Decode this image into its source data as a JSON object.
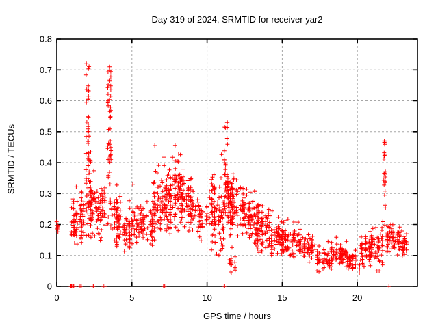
{
  "chart_data": {
    "type": "scatter",
    "title": "Day 319 of 2024, SRMTID for receiver yar2",
    "xlabel": "GPS time / hours",
    "ylabel": "SRMTID / TECUs",
    "xlim": [
      0,
      24
    ],
    "ylim": [
      0,
      0.8
    ],
    "x_tick_values": [
      0,
      5,
      10,
      15,
      20
    ],
    "x_tick_labels": [
      "0",
      "5",
      "10",
      "15",
      "20"
    ],
    "y_tick_values": [
      0,
      0.1,
      0.2,
      0.3,
      0.4,
      0.5,
      0.6,
      0.7,
      0.8
    ],
    "y_tick_labels": [
      "0",
      "0.1",
      "0.2",
      "0.3",
      "0.4",
      "0.5",
      "0.6",
      "0.7",
      "0.8"
    ],
    "grid": true,
    "legend": false,
    "marker": {
      "shape": "plus",
      "color": "#ff0000",
      "size": 7
    },
    "seed": 319,
    "zero_markers": [
      0.93,
      0.96,
      1.0,
      1.12,
      1.2,
      1.55,
      1.63,
      2.35,
      2.43,
      3.1,
      3.2,
      7.1,
      7.18,
      11.13,
      11.17,
      22.1
    ],
    "bands": [
      {
        "x0": 0.0,
        "x1": 0.12,
        "cols": 3,
        "pts": 2,
        "yc": 0.19,
        "ys": 0.012,
        "ymin": 0.17,
        "ymax": 0.21
      },
      {
        "x0": 0.9,
        "x1": 1.4,
        "cols": 14,
        "pts": 3,
        "yc": 0.2,
        "ys": 0.05,
        "ymin": 0.12,
        "ymax": 0.33
      },
      {
        "x0": 1.4,
        "x1": 1.88,
        "cols": 13,
        "pts": 3,
        "yc": 0.22,
        "ys": 0.055,
        "ymin": 0.13,
        "ymax": 0.37
      },
      {
        "x0": 1.9,
        "x1": 2.15,
        "cols": 7,
        "pts": 7,
        "yc": 0.33,
        "ys": 0.14,
        "ymin": 0.16,
        "ymax": 0.72,
        "spike": true
      },
      {
        "x0": 2.15,
        "x1": 2.7,
        "cols": 14,
        "pts": 4,
        "yc": 0.26,
        "ys": 0.07,
        "ymin": 0.14,
        "ymax": 0.46
      },
      {
        "x0": 2.7,
        "x1": 3.35,
        "cols": 15,
        "pts": 4,
        "yc": 0.24,
        "ys": 0.06,
        "ymin": 0.14,
        "ymax": 0.4
      },
      {
        "x0": 3.4,
        "x1": 3.65,
        "cols": 6,
        "pts": 7,
        "yc": 0.4,
        "ys": 0.14,
        "ymin": 0.18,
        "ymax": 0.71,
        "spike": true
      },
      {
        "x0": 3.65,
        "x1": 4.3,
        "cols": 16,
        "pts": 4,
        "yc": 0.21,
        "ys": 0.05,
        "ymin": 0.11,
        "ymax": 0.33
      },
      {
        "x0": 4.3,
        "x1": 5.0,
        "cols": 16,
        "pts": 3,
        "yc": 0.18,
        "ys": 0.04,
        "ymin": 0.1,
        "ymax": 0.28
      },
      {
        "x0": 5.0,
        "x1": 5.6,
        "cols": 14,
        "pts": 3,
        "yc": 0.21,
        "ys": 0.045,
        "ymin": 0.13,
        "ymax": 0.33
      },
      {
        "x0": 5.6,
        "x1": 6.4,
        "cols": 18,
        "pts": 3,
        "yc": 0.19,
        "ys": 0.04,
        "ymin": 0.11,
        "ymax": 0.29
      },
      {
        "x0": 6.4,
        "x1": 7.1,
        "cols": 16,
        "pts": 4,
        "yc": 0.26,
        "ys": 0.07,
        "ymin": 0.15,
        "ymax": 0.47
      },
      {
        "x0": 7.1,
        "x1": 7.6,
        "cols": 13,
        "pts": 5,
        "yc": 0.28,
        "ys": 0.07,
        "ymin": 0.17,
        "ymax": 0.44
      },
      {
        "x0": 7.6,
        "x1": 8.4,
        "cols": 18,
        "pts": 5,
        "yc": 0.3,
        "ys": 0.07,
        "ymin": 0.18,
        "ymax": 0.47
      },
      {
        "x0": 8.4,
        "x1": 9.2,
        "cols": 16,
        "pts": 4,
        "yc": 0.26,
        "ys": 0.06,
        "ymin": 0.15,
        "ymax": 0.385
      },
      {
        "x0": 9.2,
        "x1": 10.0,
        "cols": 15,
        "pts": 3,
        "yc": 0.21,
        "ys": 0.05,
        "ymin": 0.11,
        "ymax": 0.37
      },
      {
        "x0": 10.0,
        "x1": 10.6,
        "cols": 13,
        "pts": 4,
        "yc": 0.24,
        "ys": 0.08,
        "ymin": 0.08,
        "ymax": 0.43
      },
      {
        "x0": 10.6,
        "x1": 11.12,
        "cols": 12,
        "pts": 3,
        "yc": 0.21,
        "ys": 0.07,
        "ymin": 0.1,
        "ymax": 0.43
      },
      {
        "x0": 11.15,
        "x1": 11.4,
        "cols": 6,
        "pts": 7,
        "yc": 0.33,
        "ys": 0.1,
        "ymin": 0.18,
        "ymax": 0.53,
        "spike": true
      },
      {
        "x0": 11.4,
        "x1": 12.4,
        "cols": 22,
        "pts": 5,
        "yc": 0.26,
        "ys": 0.07,
        "ymin": 0.1,
        "ymax": 0.4
      },
      {
        "x0": 11.5,
        "x1": 11.95,
        "cols": 7,
        "pts": 2,
        "yc": 0.07,
        "ys": 0.02,
        "ymin": 0.03,
        "ymax": 0.11
      },
      {
        "x0": 12.4,
        "x1": 13.2,
        "cols": 18,
        "pts": 4,
        "yc": 0.23,
        "ys": 0.055,
        "ymin": 0.13,
        "ymax": 0.37
      },
      {
        "x0": 13.2,
        "x1": 14.2,
        "cols": 22,
        "pts": 4,
        "yc": 0.19,
        "ys": 0.045,
        "ymin": 0.11,
        "ymax": 0.29
      },
      {
        "x0": 14.2,
        "x1": 15.2,
        "cols": 22,
        "pts": 4,
        "yc": 0.15,
        "ys": 0.04,
        "ymin": 0.09,
        "ymax": 0.26
      },
      {
        "x0": 15.2,
        "x1": 16.2,
        "cols": 20,
        "pts": 3,
        "yc": 0.14,
        "ys": 0.035,
        "ymin": 0.08,
        "ymax": 0.24
      },
      {
        "x0": 16.2,
        "x1": 17.2,
        "cols": 20,
        "pts": 3,
        "yc": 0.12,
        "ys": 0.03,
        "ymin": 0.06,
        "ymax": 0.21
      },
      {
        "x0": 17.2,
        "x1": 18.3,
        "cols": 18,
        "pts": 3,
        "yc": 0.09,
        "ys": 0.025,
        "ymin": 0.03,
        "ymax": 0.15
      },
      {
        "x0": 18.3,
        "x1": 19.3,
        "cols": 18,
        "pts": 3,
        "yc": 0.1,
        "ys": 0.025,
        "ymin": 0.05,
        "ymax": 0.16
      },
      {
        "x0": 19.3,
        "x1": 20.1,
        "cols": 14,
        "pts": 3,
        "yc": 0.08,
        "ys": 0.025,
        "ymin": 0.02,
        "ymax": 0.13
      },
      {
        "x0": 20.1,
        "x1": 20.45,
        "cols": 8,
        "pts": 3,
        "yc": 0.09,
        "ys": 0.035,
        "ymin": 0.02,
        "ymax": 0.16
      },
      {
        "x0": 20.45,
        "x1": 21.15,
        "cols": 15,
        "pts": 4,
        "yc": 0.13,
        "ys": 0.035,
        "ymin": 0.06,
        "ymax": 0.2
      },
      {
        "x0": 21.15,
        "x1": 21.7,
        "cols": 12,
        "pts": 3,
        "yc": 0.12,
        "ys": 0.05,
        "ymin": 0.05,
        "ymax": 0.26
      },
      {
        "x0": 21.75,
        "x1": 21.95,
        "cols": 4,
        "pts": 8,
        "yc": 0.28,
        "ys": 0.11,
        "ymin": 0.14,
        "ymax": 0.47,
        "spike": true
      },
      {
        "x0": 21.95,
        "x1": 23.0,
        "cols": 20,
        "pts": 4,
        "yc": 0.15,
        "ys": 0.03,
        "ymin": 0.07,
        "ymax": 0.215
      },
      {
        "x0": 23.0,
        "x1": 23.3,
        "cols": 6,
        "pts": 3,
        "yc": 0.13,
        "ys": 0.028,
        "ymin": 0.08,
        "ymax": 0.17
      }
    ]
  },
  "colors": {
    "marker": "#ff0000",
    "grid": "#a6a6a6",
    "frame": "#000000",
    "background": "#ffffff",
    "text": "#000000"
  }
}
